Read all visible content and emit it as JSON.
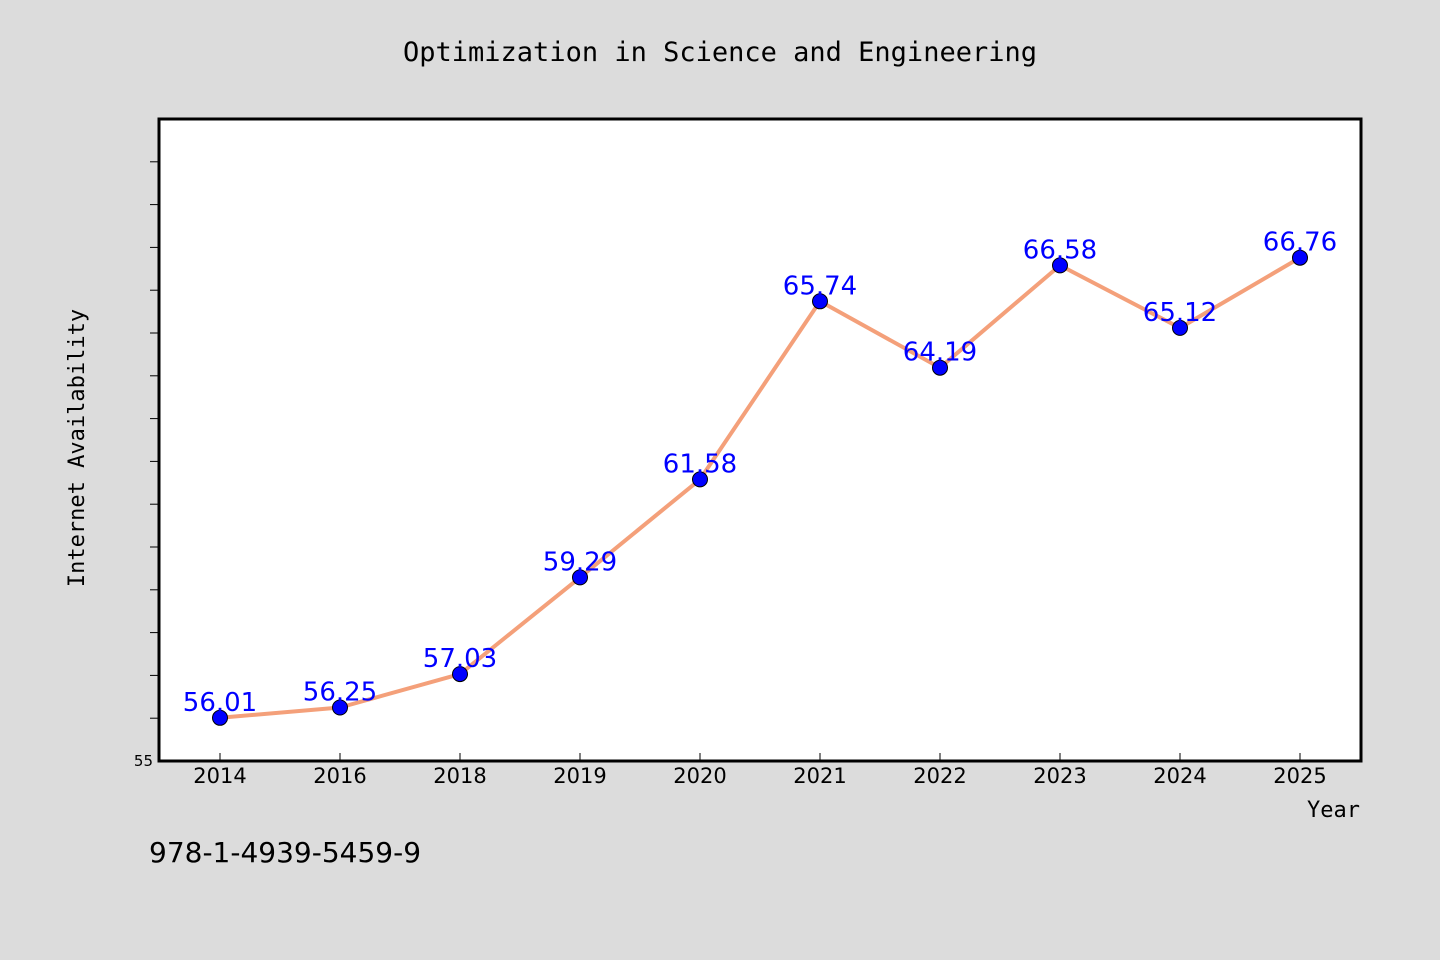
{
  "chart_data": {
    "type": "line",
    "title": "Optimization in Science and Engineering",
    "xlabel": "Year",
    "ylabel": "Internet Availability",
    "categories": [
      "2014",
      "2016",
      "2018",
      "2019",
      "2020",
      "2021",
      "2022",
      "2023",
      "2024",
      "2025"
    ],
    "series": [
      {
        "values": [
          56.01,
          56.25,
          57.03,
          59.29,
          61.58,
          65.74,
          64.19,
          66.58,
          65.12,
          66.76
        ]
      }
    ],
    "ylim": [
      55,
      70
    ],
    "yticks_labeled": [
      "55"
    ],
    "grid": false,
    "legend": "none",
    "colors": {
      "line": "#f4a07a",
      "marker": "#0000ff",
      "data_label": "#0000ff",
      "background": "#dcdcdc",
      "plot_area": "#ffffff",
      "frame": "#000000"
    }
  },
  "footer": {
    "isbn": "978-1-4939-5459-9"
  }
}
